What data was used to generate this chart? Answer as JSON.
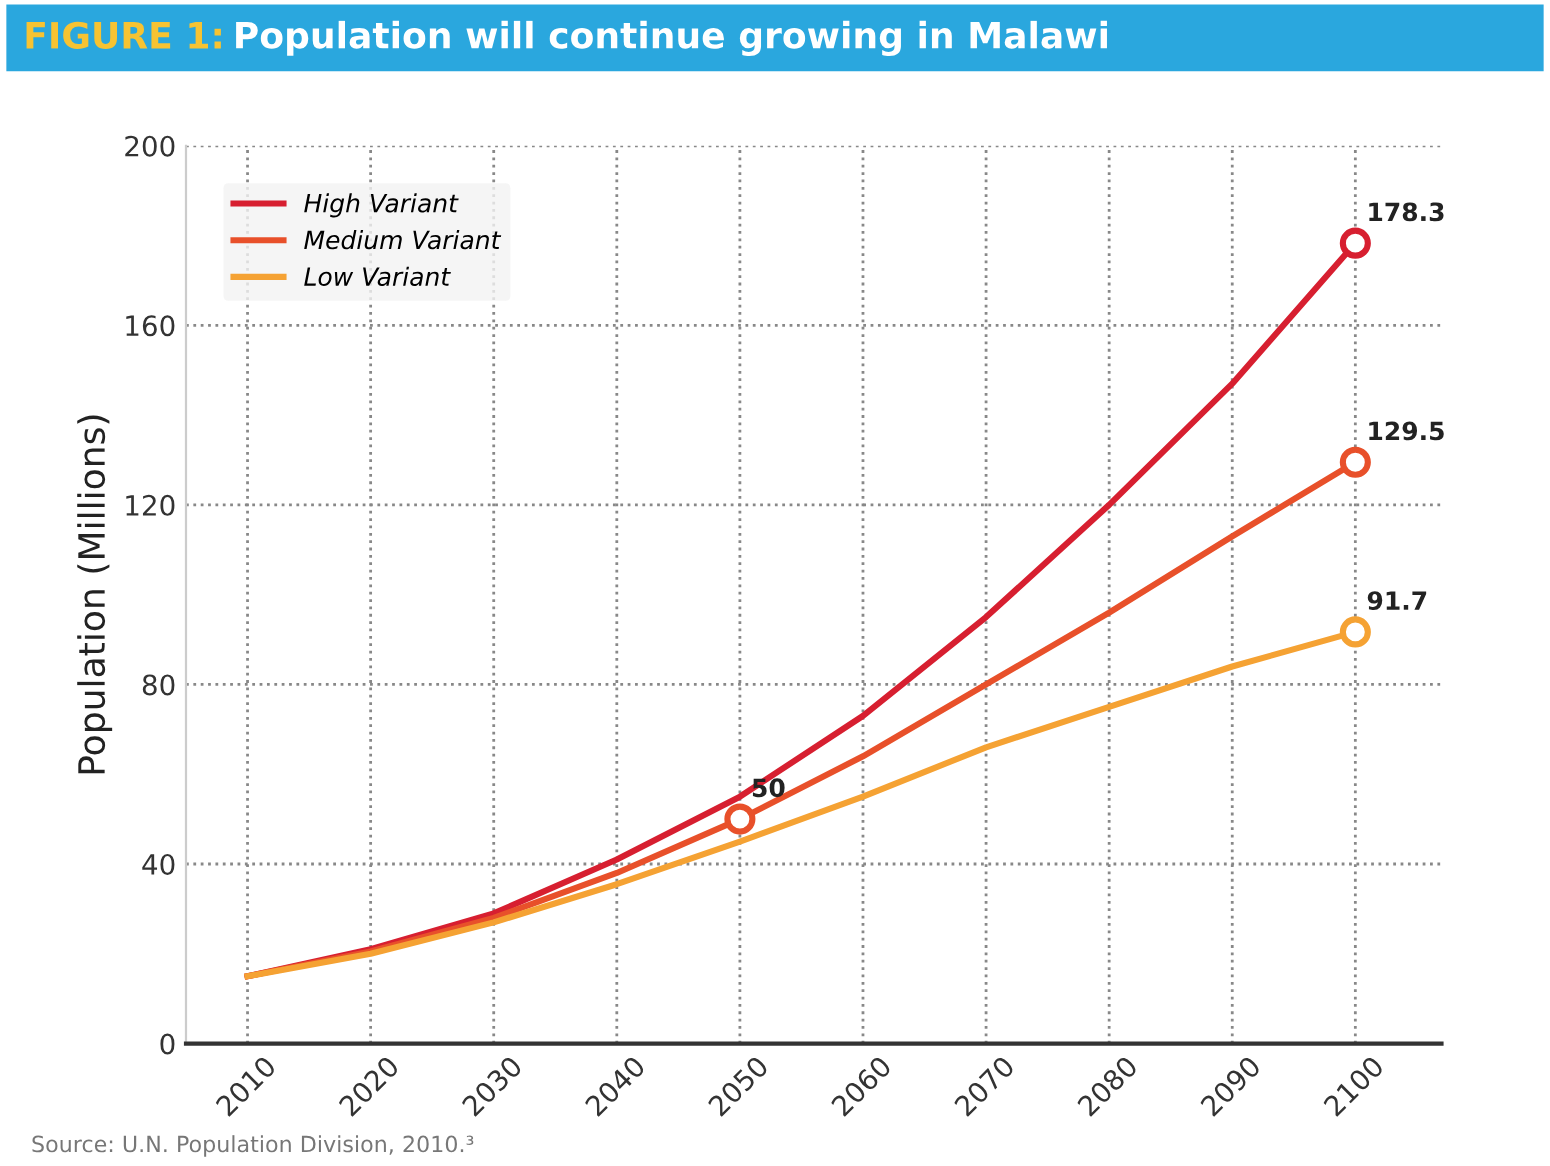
{
  "chart_data": {
    "type": "line",
    "title": "FIGURE 1: Population will continue growing in Malawi",
    "ylabel": "Population (Millions)",
    "x": [
      2010,
      2020,
      2030,
      2040,
      2050,
      2060,
      2070,
      2080,
      2090,
      2100
    ],
    "series": [
      {
        "name": "High Variant",
        "color": "#d71f30",
        "values": [
          15,
          21,
          29,
          41,
          55,
          73,
          95,
          120,
          147,
          178.3
        ],
        "value_labels": [
          null,
          null,
          null,
          null,
          null,
          null,
          null,
          null,
          null,
          "178.3"
        ]
      },
      {
        "name": "Medium Variant",
        "color": "#e8502a",
        "values": [
          15,
          20.5,
          28,
          38,
          50,
          64,
          80,
          96,
          113,
          129.5
        ],
        "value_labels": [
          null,
          null,
          null,
          null,
          "50",
          null,
          null,
          null,
          null,
          "129.5"
        ]
      },
      {
        "name": "Low Variant",
        "color": "#f5a233",
        "values": [
          15,
          20,
          27,
          35.5,
          45,
          55,
          66,
          75,
          84,
          91.7
        ],
        "value_labels": [
          null,
          null,
          null,
          null,
          null,
          null,
          null,
          null,
          null,
          "91.7"
        ]
      }
    ],
    "xlim": [
      2005,
      2107
    ],
    "xticks": [
      2010,
      2020,
      2030,
      2040,
      2050,
      2060,
      2070,
      2080,
      2090,
      2100
    ],
    "ylim": [
      0,
      200
    ],
    "yticks": [
      0,
      40,
      80,
      120,
      160,
      200
    ],
    "grid": true,
    "legend": "top left",
    "line_style": "solid",
    "annotations": [
      "Source: U.N. Population Division, 2010.³"
    ]
  }
}
